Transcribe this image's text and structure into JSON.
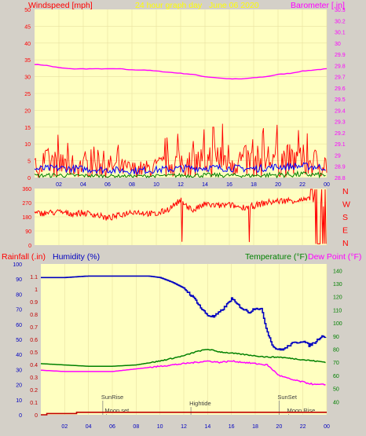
{
  "header": {
    "wind_label": "Windspeed [mph]",
    "title": "24 hour graph day",
    "date": "June 06 2020",
    "baro_label": "Barometer [.in]"
  },
  "colors": {
    "background": "#ffffc0",
    "frame": "#d4d0c8",
    "wind": "#ff0000",
    "avg_wind": "#0000ff",
    "min_wind": "#008000",
    "barometer": "#ff00ff",
    "humidity": "#0000c0",
    "temperature": "#008000",
    "dewpoint": "#ff00ff",
    "rain": "#c00000",
    "header_yellow": "#ffff00"
  },
  "x_ticks": [
    "02",
    "04",
    "06",
    "08",
    "10",
    "12",
    "14",
    "16",
    "18",
    "20",
    "22",
    "00"
  ],
  "compass": [
    "N",
    "W",
    "S",
    "E",
    "N"
  ],
  "bottom_labels": {
    "rain": "Rainfall (.in)",
    "humidity": "Humidity (%)",
    "temperature": "Temperature (°F)",
    "dewpoint": "Dew Point (°F)"
  },
  "annotations": [
    {
      "text": "SunRise",
      "hour": 5.2,
      "row": "upper"
    },
    {
      "text": "Moon set",
      "hour": 5.5,
      "row": "lower"
    },
    {
      "text": "Hightide",
      "hour": 12.6,
      "row": "middle"
    },
    {
      "text": "SunSet",
      "hour": 20.0,
      "row": "upper"
    },
    {
      "text": "Moon Rise",
      "hour": 20.8,
      "row": "lower"
    }
  ],
  "chart_data": [
    {
      "type": "line",
      "id": "wind",
      "ylabel": "Windspeed [mph]",
      "y2label": "Barometer [.in]",
      "ylim": [
        0,
        50
      ],
      "y2lim": [
        28.8,
        30.3
      ],
      "yticks": [
        0,
        5,
        10,
        15,
        20,
        25,
        30,
        35,
        40,
        45,
        50
      ],
      "y2ticks": [
        "28.8",
        "28.9",
        "29",
        "29.1",
        "29.2",
        "29.3",
        "29.4",
        "29.5",
        "29.6",
        "29.7",
        "29.8",
        "29.9",
        "30",
        "30.1",
        "30.2",
        "30.3"
      ],
      "xlim": [
        0,
        24
      ],
      "series": [
        {
          "name": "Barometer",
          "axis": "y2",
          "x": [
            0,
            1,
            2,
            3,
            4,
            5,
            6,
            7,
            8,
            9,
            10,
            11,
            12,
            13,
            14,
            15,
            16,
            17,
            18,
            19,
            20,
            21,
            22,
            23,
            24
          ],
          "values": [
            29.81,
            29.8,
            29.78,
            29.77,
            29.77,
            29.77,
            29.77,
            29.77,
            29.76,
            29.76,
            29.75,
            29.74,
            29.73,
            29.72,
            29.7,
            29.69,
            29.68,
            29.68,
            29.69,
            29.7,
            29.72,
            29.73,
            29.75,
            29.76,
            29.77
          ]
        },
        {
          "name": "Gust",
          "x": [
            0,
            1,
            2,
            3,
            4,
            5,
            6,
            7,
            8,
            9,
            10,
            11,
            12,
            13,
            14,
            15,
            16,
            17,
            18,
            19,
            20,
            21,
            22,
            23,
            24
          ],
          "values": [
            6,
            9,
            8,
            7,
            7,
            7,
            7,
            6,
            5,
            5,
            6,
            8,
            9,
            9,
            10,
            12,
            11,
            10,
            9,
            11,
            11,
            10,
            10,
            9,
            8
          ]
        },
        {
          "name": "Average",
          "x": [
            0,
            2,
            4,
            6,
            8,
            10,
            12,
            14,
            16,
            18,
            20,
            22,
            24
          ],
          "values": [
            2.5,
            2.8,
            2.5,
            2.3,
            2.0,
            2.3,
            2.7,
            2.9,
            2.8,
            2.6,
            3.2,
            3.4,
            3.0
          ]
        },
        {
          "name": "Minimum",
          "x": [
            0,
            2,
            4,
            6,
            8,
            10,
            12,
            14,
            16,
            18,
            20,
            22,
            24
          ],
          "values": [
            0.8,
            1.0,
            0.8,
            0.7,
            0.6,
            0.7,
            0.9,
            1.0,
            0.9,
            0.8,
            1.2,
            1.3,
            1.0
          ]
        }
      ]
    },
    {
      "type": "line",
      "id": "direction",
      "ylim": [
        0,
        360
      ],
      "yticks": [
        0,
        90,
        180,
        270,
        360
      ],
      "xlim": [
        0,
        24
      ],
      "series": [
        {
          "name": "Wind direction",
          "x": [
            0,
            1,
            2,
            3,
            4,
            5,
            6,
            7,
            8,
            9,
            10,
            11,
            12,
            13,
            14,
            15,
            16,
            17,
            18,
            19,
            20,
            21,
            22,
            23,
            24
          ],
          "values": [
            200,
            205,
            210,
            200,
            205,
            195,
            170,
            190,
            215,
            205,
            195,
            230,
            285,
            220,
            260,
            250,
            255,
            240,
            250,
            270,
            280,
            285,
            285,
            290,
            230
          ]
        }
      ]
    },
    {
      "type": "line",
      "id": "climate",
      "rain_lim": [
        0,
        1.2
      ],
      "rain_ticks": [
        "0",
        "0.1",
        "0.2",
        "0.3",
        "0.4",
        "0.5",
        "0.6",
        "0.7",
        "0.8",
        "0.9",
        "1",
        "1.1"
      ],
      "hum_lim": [
        0,
        100
      ],
      "hum_ticks": [
        0,
        10,
        20,
        30,
        40,
        50,
        60,
        70,
        80,
        90,
        100
      ],
      "temp_lim": [
        30,
        145
      ],
      "temp_ticks": [
        40,
        50,
        60,
        70,
        80,
        90,
        100,
        110,
        120,
        130,
        140
      ],
      "xlim": [
        0,
        24
      ],
      "series": [
        {
          "name": "Humidity",
          "axis": "humidity",
          "x": [
            0,
            2,
            4,
            6,
            8,
            9,
            10,
            11,
            12,
            12.5,
            13,
            13.5,
            14,
            14.5,
            15,
            15.5,
            16,
            16.5,
            17,
            17.5,
            18,
            18.5,
            19,
            19.5,
            20,
            20.5,
            21,
            22,
            22.5,
            23,
            23.5,
            24
          ],
          "values": [
            91,
            91,
            92,
            92,
            92,
            92,
            91,
            88,
            84,
            80,
            76,
            70,
            66,
            65,
            68,
            72,
            77,
            73,
            70,
            68,
            71,
            70,
            55,
            45,
            43,
            44,
            47,
            49,
            46,
            48,
            52,
            52
          ]
        },
        {
          "name": "Temperature",
          "axis": "temp",
          "x": [
            0,
            2,
            4,
            6,
            8,
            10,
            11,
            12,
            13,
            14,
            15,
            16,
            17,
            18,
            19,
            20,
            21,
            22,
            23,
            24
          ],
          "values": [
            69,
            68,
            67,
            67,
            68,
            71,
            73,
            75,
            78,
            80,
            78,
            77,
            76,
            75,
            74,
            74,
            73,
            72,
            71,
            70
          ]
        },
        {
          "name": "Dew Point",
          "axis": "temp",
          "x": [
            0,
            2,
            4,
            6,
            8,
            10,
            11,
            12,
            13,
            14,
            15,
            16,
            17,
            18,
            19,
            20,
            21,
            22,
            23,
            24
          ],
          "values": [
            64,
            63,
            63,
            63,
            65,
            67,
            68,
            69,
            70,
            71,
            70,
            71,
            70,
            69,
            68,
            60,
            57,
            55,
            53,
            53
          ]
        },
        {
          "name": "Rainfall",
          "axis": "rain",
          "x": [
            0,
            0.5,
            3,
            5.5,
            8,
            12,
            20,
            24
          ],
          "values": [
            0,
            0.01,
            0.02,
            0.02,
            0.02,
            0.02,
            0.02,
            0.02
          ]
        }
      ]
    }
  ]
}
